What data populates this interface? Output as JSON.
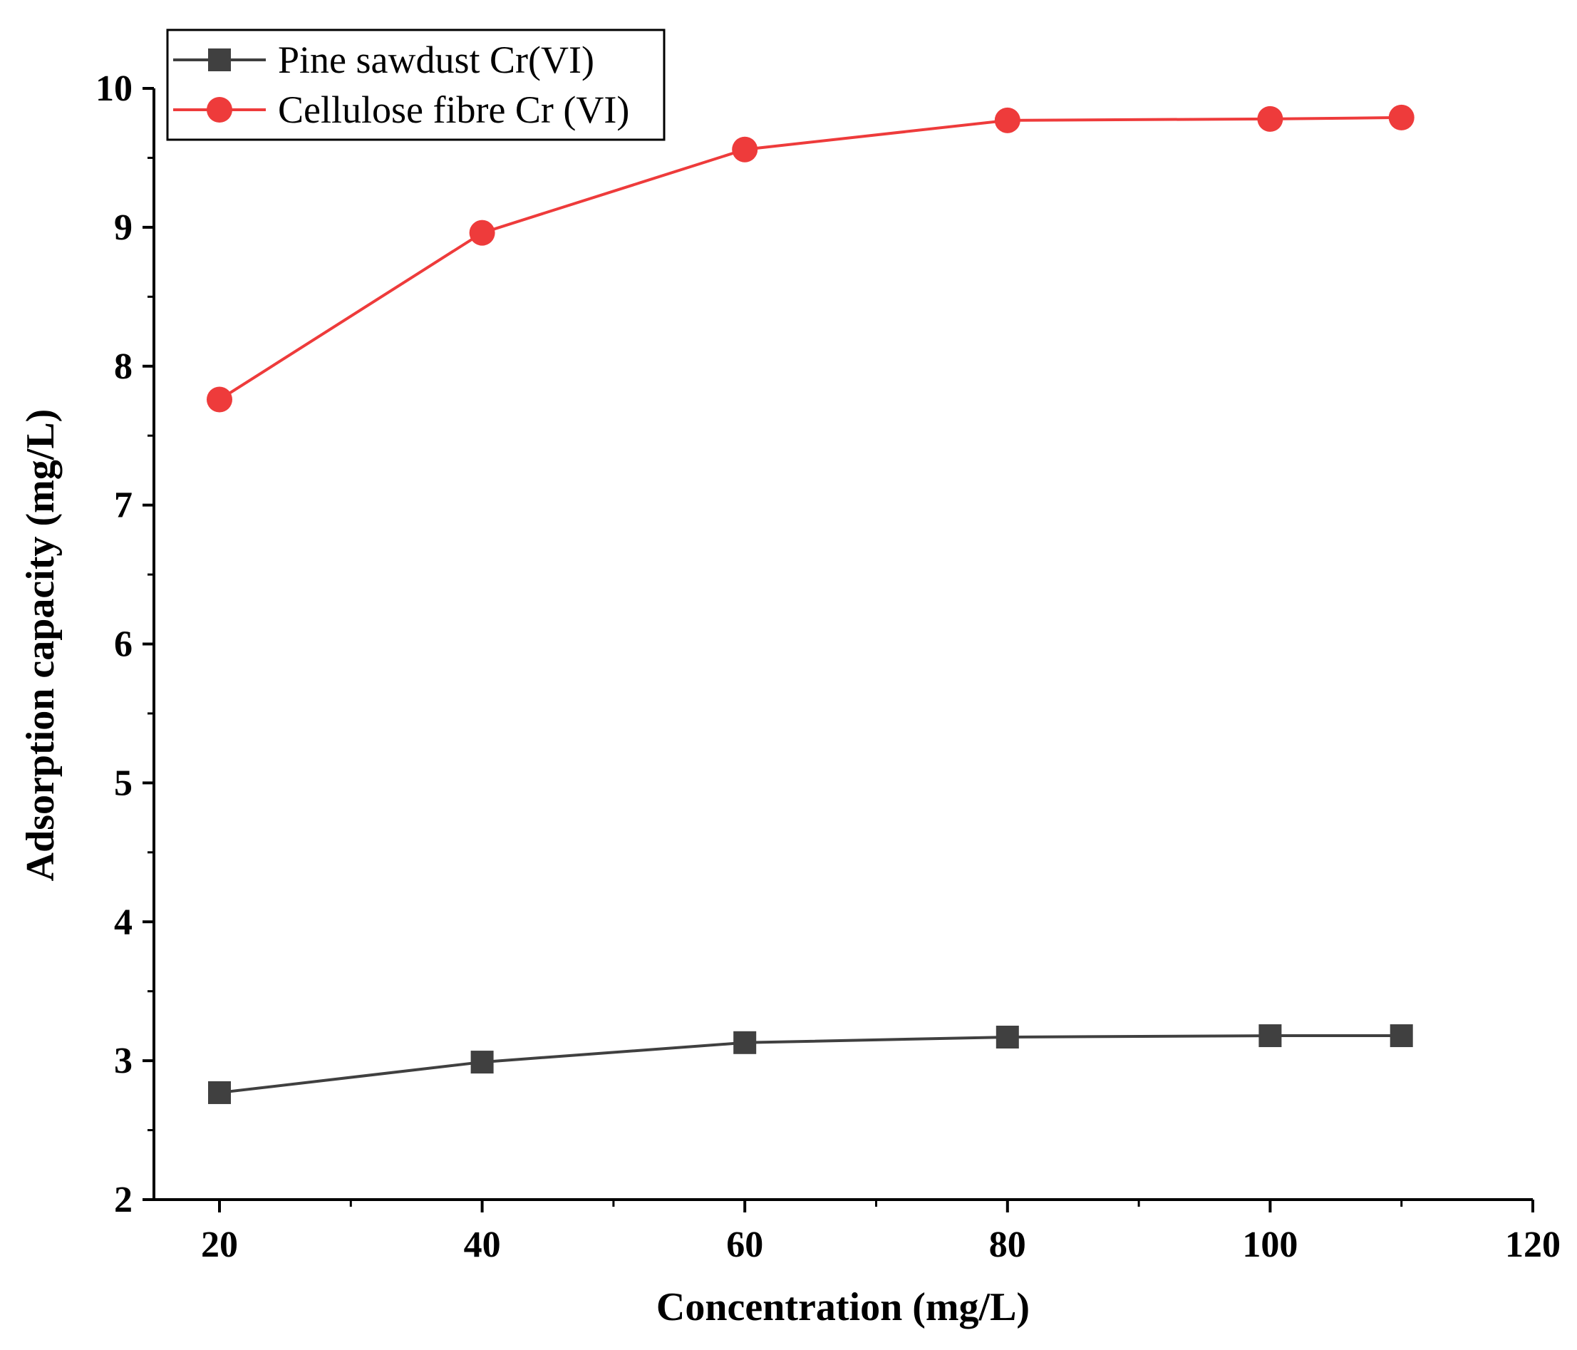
{
  "chart_data": {
    "type": "line",
    "xlabel": "Concentration (mg/L)",
    "ylabel": "Adsorption capacity (mg/L)",
    "xlim": [
      15,
      120
    ],
    "ylim": [
      2,
      10
    ],
    "x_ticks": [
      "20",
      "40",
      "60",
      "80",
      "100",
      "120"
    ],
    "y_ticks": [
      "2",
      "3",
      "4",
      "5",
      "6",
      "7",
      "8",
      "9",
      "10"
    ],
    "x": [
      20,
      40,
      60,
      80,
      100,
      110
    ],
    "series": [
      {
        "name": "Pine sawdust Cr(VI)",
        "marker": "square",
        "color": "#404040",
        "values": [
          2.77,
          2.99,
          3.13,
          3.17,
          3.18,
          3.18
        ]
      },
      {
        "name": "Cellulose fibre Cr (VI)",
        "marker": "circle",
        "color": "#ee3b3b",
        "values": [
          7.76,
          8.96,
          9.56,
          9.77,
          9.78,
          9.79
        ]
      }
    ],
    "legend_position": "top-left",
    "grid": false
  }
}
